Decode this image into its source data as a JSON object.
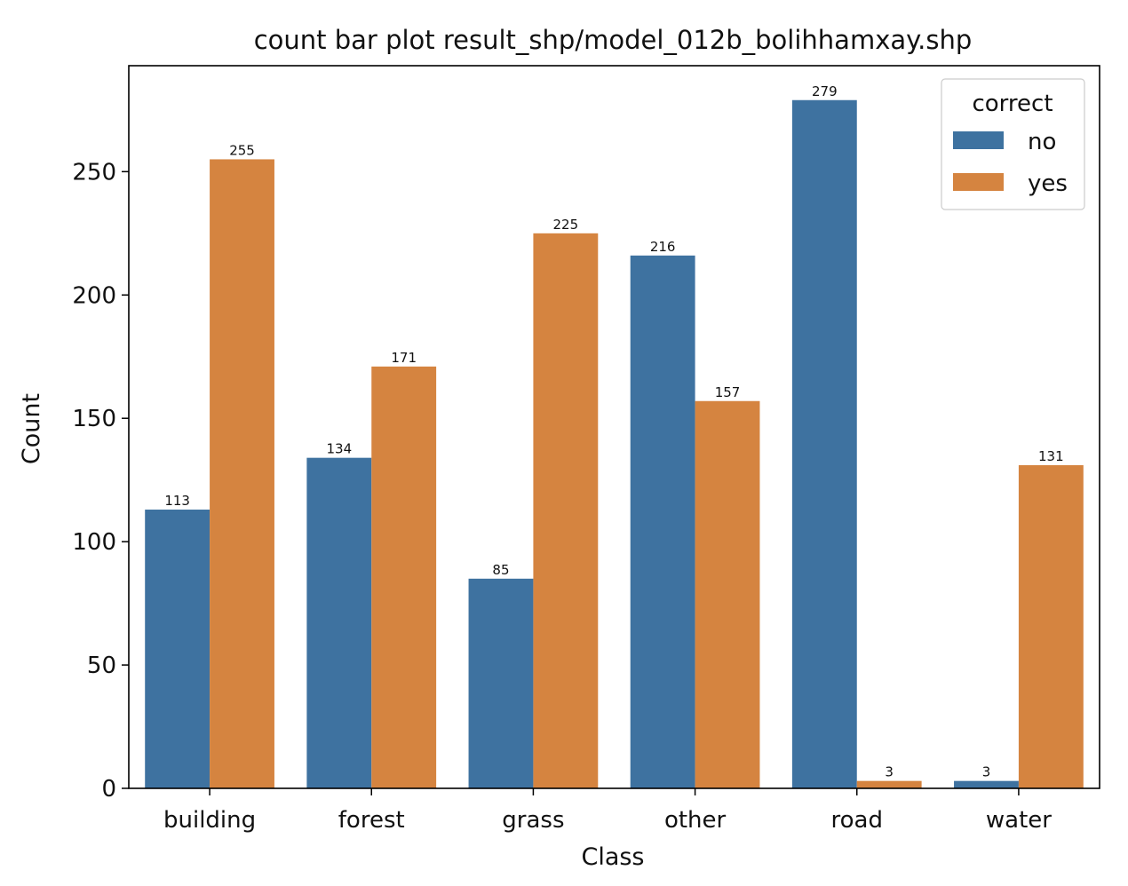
{
  "chart_data": {
    "type": "bar",
    "title": "count bar plot result_shp/model_012b_bolihhamxay.shp",
    "xlabel": "Class",
    "ylabel": "Count",
    "categories": [
      "building",
      "forest",
      "grass",
      "other",
      "road",
      "water"
    ],
    "series": [
      {
        "name": "no",
        "color": "#3e72a0",
        "values": [
          113,
          134,
          85,
          216,
          279,
          3
        ]
      },
      {
        "name": "yes",
        "color": "#d58440",
        "values": [
          255,
          171,
          225,
          157,
          3,
          131
        ]
      }
    ],
    "ylim": [
      0,
      292.95
    ],
    "yticks": [
      0,
      50,
      100,
      150,
      200,
      250
    ],
    "grid": false,
    "legend": {
      "title": "correct",
      "placement": "top-right"
    }
  }
}
